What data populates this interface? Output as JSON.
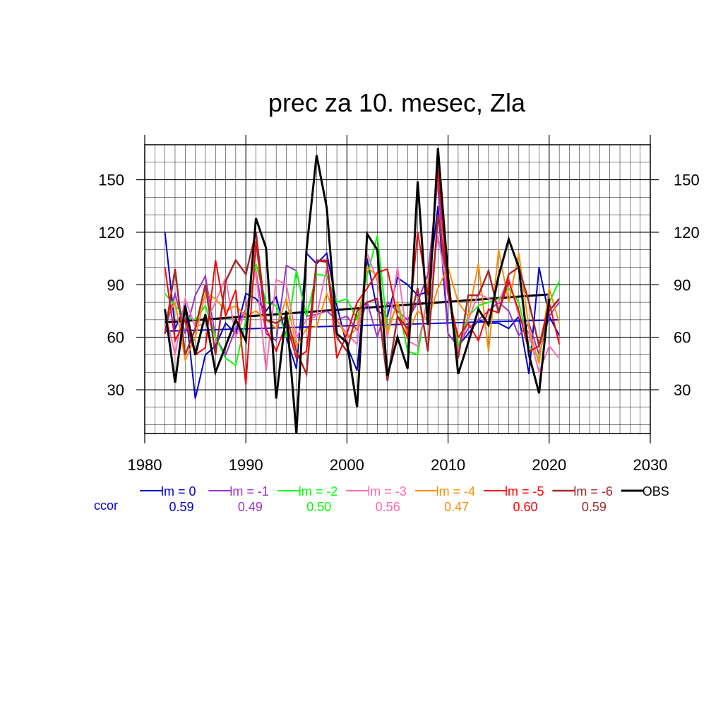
{
  "chart_data": {
    "type": "line",
    "title": "prec za 10. mesec, Zla",
    "xlabel": "",
    "ylabel": "",
    "xlim": [
      1980,
      2030
    ],
    "ylim": [
      5,
      170
    ],
    "x_ticks": [
      1980,
      1990,
      2000,
      2010,
      2020,
      2030
    ],
    "y_ticks": [
      30,
      60,
      90,
      120,
      150
    ],
    "grid": true,
    "legend_position": "bottom",
    "corr_label": "ccor",
    "x": [
      1982,
      1983,
      1984,
      1985,
      1986,
      1987,
      1988,
      1989,
      1990,
      1991,
      1992,
      1993,
      1994,
      1995,
      1996,
      1997,
      1998,
      1999,
      2000,
      2001,
      2002,
      2003,
      2004,
      2005,
      2006,
      2007,
      2008,
      2009,
      2010,
      2011,
      2012,
      2013,
      2014,
      2015,
      2016,
      2017,
      2018,
      2019,
      2020,
      2021
    ],
    "series": [
      {
        "name": "lm = 0",
        "color": "#0000cc",
        "ccor": "0.59",
        "width": 2,
        "values": [
          120,
          65,
          78,
          25,
          50,
          55,
          68,
          62,
          85,
          82,
          75,
          83,
          60,
          42,
          108,
          102,
          108,
          78,
          55,
          41,
          105,
          75,
          72,
          94,
          90,
          84,
          86,
          135,
          62,
          55,
          62,
          70,
          68,
          68,
          65,
          72,
          39,
          100,
          72,
          61
        ]
      },
      {
        "name": "lm = -1",
        "color": "#9932cc",
        "ccor": "0.49",
        "width": 2,
        "values": [
          64,
          85,
          62,
          84,
          95,
          60,
          50,
          65,
          76,
          98,
          62,
          58,
          101,
          98,
          72,
          73,
          75,
          70,
          72,
          64,
          80,
          60,
          80,
          75,
          70,
          80,
          96,
          150,
          62,
          55,
          65,
          70,
          75,
          80,
          75,
          61,
          68,
          50,
          72,
          80
        ]
      },
      {
        "name": "lm = -2",
        "color": "#00ff00",
        "ccor": "0.50",
        "width": 2,
        "values": [
          85,
          78,
          72,
          70,
          78,
          60,
          48,
          44,
          70,
          102,
          80,
          78,
          60,
          98,
          72,
          96,
          95,
          80,
          82,
          70,
          95,
          118,
          64,
          80,
          52,
          50,
          85,
          155,
          90,
          55,
          72,
          78,
          80,
          82,
          88,
          80,
          55,
          48,
          80,
          92
        ]
      },
      {
        "name": "lm = -3",
        "color": "#ff69b4",
        "ccor": "0.56",
        "width": 2,
        "values": [
          75,
          50,
          82,
          66,
          68,
          80,
          94,
          60,
          75,
          98,
          41,
          93,
          90,
          60,
          70,
          72,
          100,
          70,
          62,
          56,
          108,
          92,
          60,
          100,
          58,
          55,
          82,
          118,
          84,
          52,
          70,
          85,
          82,
          80,
          94,
          72,
          62,
          40,
          55,
          48
        ]
      },
      {
        "name": "lm = -4",
        "color": "#ff8c00",
        "ccor": "0.47",
        "width": 2,
        "values": [
          70,
          80,
          47,
          60,
          85,
          82,
          75,
          78,
          72,
          75,
          70,
          65,
          82,
          55,
          65,
          66,
          85,
          70,
          60,
          65,
          100,
          95,
          62,
          80,
          62,
          75,
          70,
          88,
          100,
          80,
          72,
          102,
          52,
          110,
          80,
          108,
          65,
          45,
          88,
          68
        ]
      },
      {
        "name": "lm = -5",
        "color": "#ff0000",
        "ccor": "0.60",
        "width": 2,
        "values": [
          100,
          58,
          70,
          50,
          54,
          104,
          72,
          87,
          33,
          115,
          65,
          52,
          68,
          48,
          52,
          104,
          104,
          48,
          62,
          80,
          88,
          97,
          99,
          72,
          60,
          120,
          84,
          156,
          85,
          60,
          68,
          58,
          76,
          74,
          92,
          75,
          52,
          55,
          80,
          56
        ]
      },
      {
        "name": "lm = -6",
        "color": "#a52a2a",
        "ccor": "0.59",
        "width": 2.5,
        "values": [
          62,
          99,
          50,
          65,
          90,
          50,
          92,
          104,
          96,
          120,
          70,
          68,
          72,
          52,
          39,
          104,
          103,
          60,
          52,
          75,
          80,
          82,
          35,
          72,
          65,
          88,
          52,
          130,
          90,
          48,
          84,
          84,
          98,
          74,
          96,
          100,
          80,
          55,
          75,
          82
        ]
      },
      {
        "name": "OBS",
        "color": "#000000",
        "ccor": "",
        "width": 3,
        "values": [
          76,
          34,
          78,
          50,
          73,
          40,
          55,
          70,
          58,
          128,
          111,
          25,
          75,
          5,
          110,
          164,
          134,
          62,
          57,
          20,
          119,
          110,
          38,
          60,
          42,
          149,
          67,
          168,
          95,
          39,
          57,
          76,
          67,
          95,
          116,
          100,
          50,
          28,
          82,
          null
        ]
      }
    ],
    "trends": [
      {
        "name": "lm = 0 trend",
        "color": "#0000cc",
        "width": 2,
        "x": [
          1982,
          2021
        ],
        "values": [
          63.5,
          70
        ]
      },
      {
        "name": "OBS trend",
        "color": "#000000",
        "width": 3,
        "x": [
          1982,
          2020
        ],
        "values": [
          68.5,
          84.5
        ]
      }
    ]
  }
}
